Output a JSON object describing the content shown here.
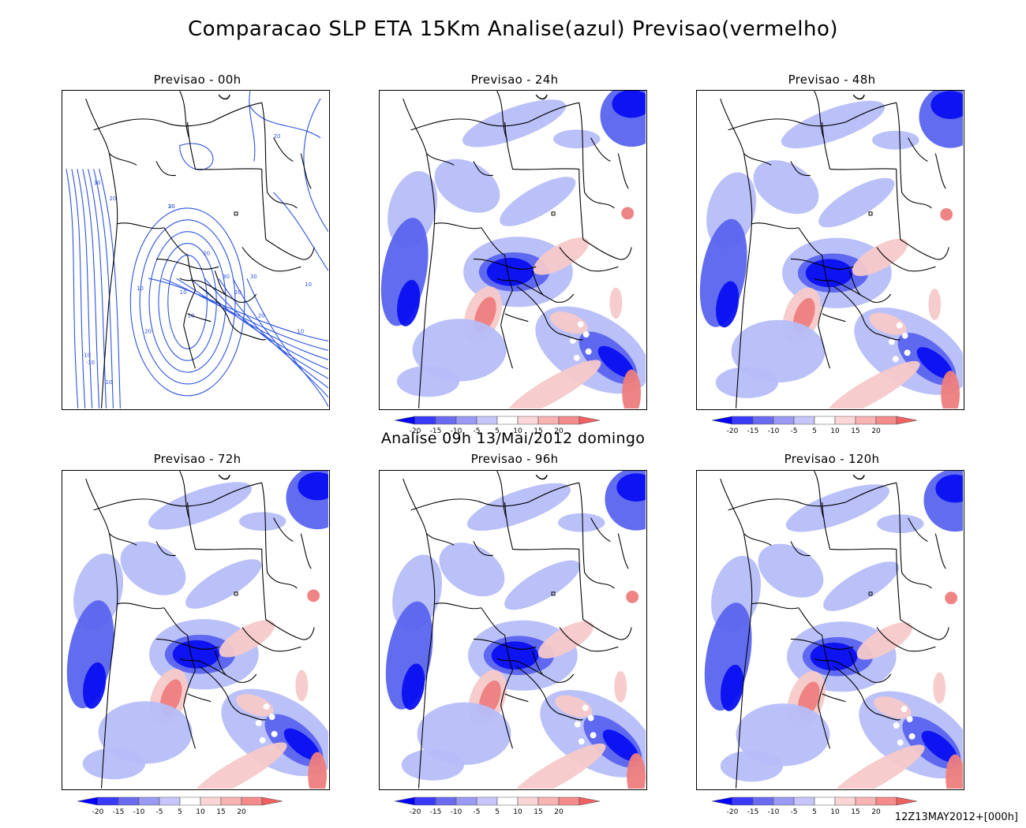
{
  "title": "Comparacao SLP ETA 15Km Analise(azul) Previsao(vermelho)",
  "analysis_label": "Analise 09h 13/Mai/2012 domingo",
  "footer_stamp": "12Z13MAY2012+[000h]",
  "panels": [
    {
      "title": "Previsao - 00h",
      "type": "contour",
      "colorbar": false
    },
    {
      "title": "Previsao - 24h",
      "type": "anomaly",
      "colorbar": true
    },
    {
      "title": "Previsao - 48h",
      "type": "anomaly",
      "colorbar": true
    },
    {
      "title": "Previsao - 72h",
      "type": "anomaly",
      "colorbar": true
    },
    {
      "title": "Previsao - 96h",
      "type": "anomaly",
      "colorbar": true
    },
    {
      "title": "Previsao - 120h",
      "type": "anomaly",
      "colorbar": true
    }
  ],
  "contour_labels": [
    "30",
    "20",
    "30",
    "20",
    "30",
    "-10",
    "10",
    "20",
    "10",
    "10",
    "20",
    "10",
    "20",
    "-10",
    "30",
    "20",
    "10",
    "10",
    "20"
  ],
  "colorbar": {
    "ticks": [
      "-20",
      "-15",
      "-10",
      "-5",
      "5",
      "10",
      "15",
      "20"
    ],
    "colors": [
      "#0000ff",
      "#3a3aff",
      "#6b6bf2",
      "#9a9af5",
      "#c6c6fa",
      "#ffffff",
      "#fbd6d6",
      "#f8b3b3",
      "#f58c8c",
      "#f06060"
    ]
  },
  "colors": {
    "strong_negative": "#0a10f0",
    "moderate_negative": "#5a64ee",
    "weak_negative": "#b6bdf8",
    "weak_positive": "#f6c9c9",
    "moderate_positive": "#ee7d7d",
    "strong_positive": "#e84848",
    "contour_line": "#2a52e0",
    "border_line": "#000000"
  }
}
